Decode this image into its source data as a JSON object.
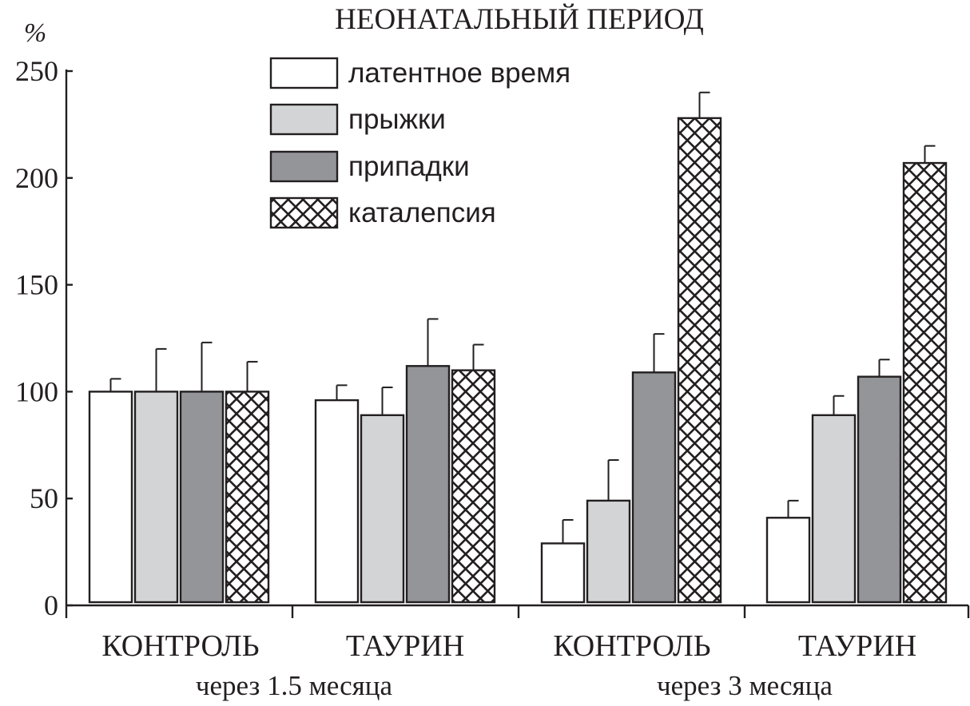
{
  "chart_data": {
    "type": "bar",
    "title": "НЕОНАТАЛЬНЫЙ ПЕРИОД",
    "ylabel": "%",
    "ylim": [
      0,
      250
    ],
    "yticks": [
      0,
      50,
      100,
      150,
      200,
      250
    ],
    "grid": false,
    "legend_position": "top-center",
    "categories": [
      "КОНТРОЛЬ",
      "ТАУРИН",
      "КОНТРОЛЬ",
      "ТАУРИН"
    ],
    "groups": [
      {
        "label": "через 1.5 месяца",
        "categories": [
          0,
          1
        ]
      },
      {
        "label": "через 3 месяца",
        "categories": [
          2,
          3
        ]
      }
    ],
    "series": [
      {
        "name": "латентное время",
        "fill": "white",
        "color": "#ffffff",
        "values": [
          100,
          96,
          29,
          41
        ],
        "errors": [
          6,
          7,
          11,
          8
        ]
      },
      {
        "name": "прыжки",
        "fill": "light-gray",
        "color": "#d3d4d6",
        "values": [
          100,
          89,
          49,
          89
        ],
        "errors": [
          20,
          13,
          19,
          9
        ]
      },
      {
        "name": "припадки",
        "fill": "dark-gray",
        "color": "#939598",
        "values": [
          100,
          112,
          109,
          107
        ],
        "errors": [
          23,
          22,
          18,
          8
        ]
      },
      {
        "name": "каталепсия",
        "fill": "crosshatch",
        "color": "#231f20",
        "values": [
          100,
          110,
          228,
          207
        ],
        "errors": [
          14,
          12,
          12,
          8
        ]
      }
    ]
  }
}
